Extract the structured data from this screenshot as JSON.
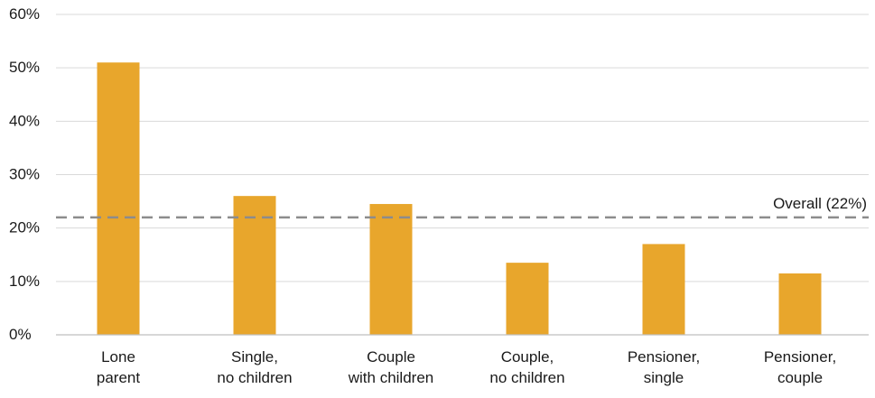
{
  "chart_data": {
    "type": "bar",
    "categories": [
      [
        "Lone",
        "parent"
      ],
      [
        "Single,",
        "no children"
      ],
      [
        "Couple",
        "with children"
      ],
      [
        "Couple,",
        "no children"
      ],
      [
        "Pensioner,",
        "single"
      ],
      [
        "Pensioner,",
        "couple"
      ]
    ],
    "values": [
      51,
      26,
      24.5,
      13.5,
      17,
      11.5
    ],
    "ylim": [
      0,
      60
    ],
    "yticks": [
      0,
      10,
      20,
      30,
      40,
      50,
      60
    ],
    "ytick_labels": [
      "0%",
      "10%",
      "20%",
      "30%",
      "40%",
      "50%",
      "60%"
    ],
    "grid": true,
    "title": "",
    "xlabel": "",
    "ylabel": "",
    "reference_line": {
      "value": 22,
      "label": "Overall (22%)",
      "style": "dashed"
    },
    "colors": {
      "bar": "#E8A62C",
      "reference_line": "#8C8C8C",
      "grid": "#D9D9D9",
      "axis": "#BFBFBF",
      "text": "#1A1A1A"
    }
  }
}
